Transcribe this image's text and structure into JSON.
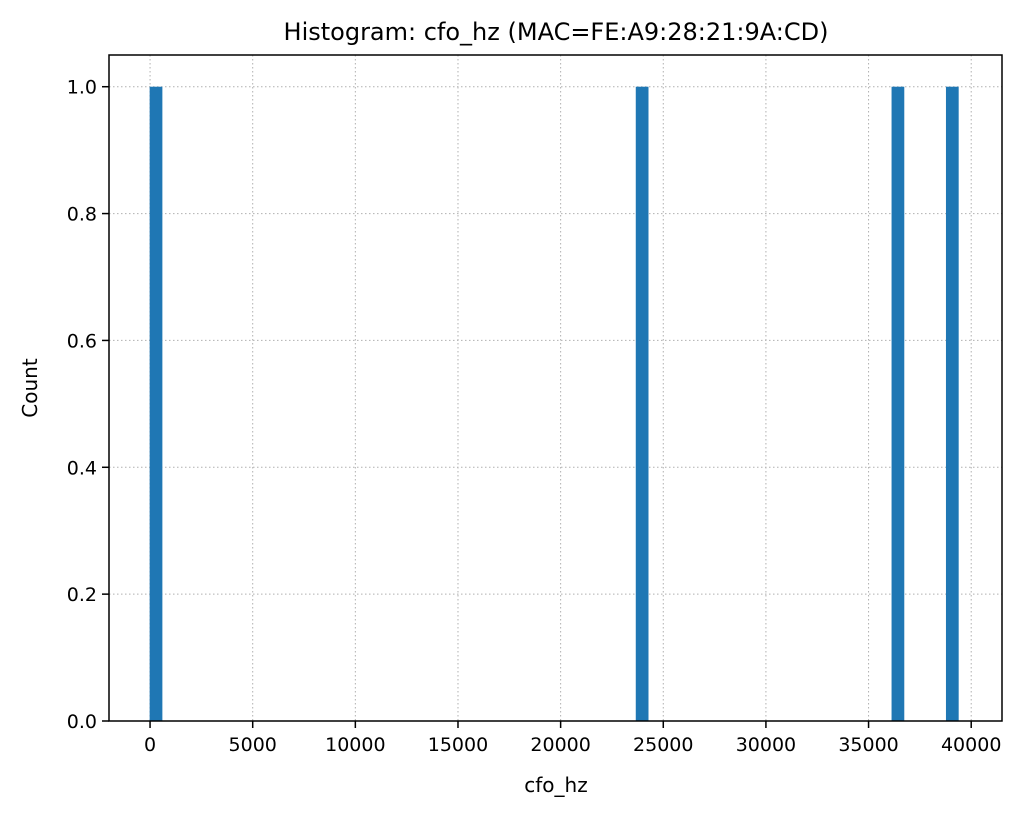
{
  "chart_data": {
    "type": "bar",
    "title": "Histogram: cfo_hz (MAC=FE:A9:28:21:9A:CD)",
    "xlabel": "cfo_hz",
    "ylabel": "Count",
    "xlim": [
      -2000,
      41500
    ],
    "ylim": [
      0,
      1.05
    ],
    "grid": true,
    "x_ticks": [
      0,
      5000,
      10000,
      15000,
      20000,
      25000,
      30000,
      35000,
      40000
    ],
    "x_tick_labels": [
      "0",
      "5000",
      "10000",
      "15000",
      "20000",
      "25000",
      "30000",
      "35000",
      "40000"
    ],
    "y_ticks": [
      0.0,
      0.2,
      0.4,
      0.6,
      0.8,
      1.0
    ],
    "y_tick_labels": [
      "0.0",
      "0.2",
      "0.4",
      "0.6",
      "0.8",
      "1.0"
    ],
    "bins": [
      {
        "x0": -20,
        "x1": 600,
        "count": 1
      },
      {
        "x0": 23660,
        "x1": 24280,
        "count": 1
      },
      {
        "x0": 36120,
        "x1": 36740,
        "count": 1
      },
      {
        "x0": 38770,
        "x1": 39390,
        "count": 1
      }
    ],
    "bar_color": "#1f77b4"
  }
}
